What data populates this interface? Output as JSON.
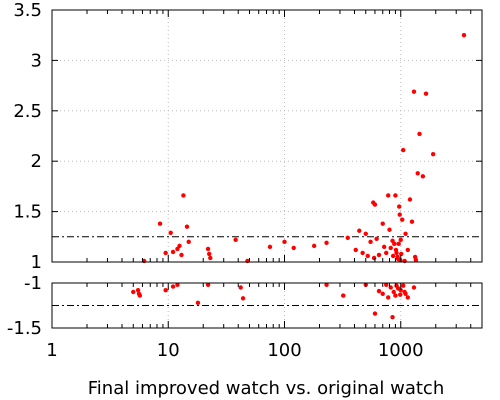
{
  "chart_data": {
    "type": "scatter",
    "xlabel": "Final improved watch vs. original watch",
    "ylabel": "",
    "x_scale": "log",
    "xlim": [
      1,
      5000
    ],
    "x_ticks": [
      "1",
      "10",
      "100",
      "1000"
    ],
    "grid": true,
    "point_color": "#ff0000",
    "panels": [
      {
        "name": "upper",
        "ylim": [
          1,
          3.5
        ],
        "y_ticks": [
          "1",
          "1.5",
          "2",
          "2.5",
          "3",
          "3.5"
        ],
        "reference_lines": [
          {
            "y": 1.25,
            "style": "dash-dot",
            "color": "#000000"
          },
          {
            "y": 1.0,
            "style": "dashed",
            "color": "#0000ff"
          }
        ],
        "points": [
          [
            6.2,
            1.01
          ],
          [
            8.5,
            1.38
          ],
          [
            9.5,
            1.09
          ],
          [
            10.5,
            1.29
          ],
          [
            11,
            1.1
          ],
          [
            12,
            1.13
          ],
          [
            12.5,
            1.16
          ],
          [
            13,
            1.07
          ],
          [
            13.5,
            1.66
          ],
          [
            14.5,
            1.35
          ],
          [
            15,
            1.2
          ],
          [
            22,
            1.13
          ],
          [
            22.5,
            1.08
          ],
          [
            23,
            1.04
          ],
          [
            38,
            1.22
          ],
          [
            48,
            1.01
          ],
          [
            75,
            1.15
          ],
          [
            100,
            1.2
          ],
          [
            120,
            1.14
          ],
          [
            180,
            1.16
          ],
          [
            230,
            1.19
          ],
          [
            350,
            1.24
          ],
          [
            410,
            1.12
          ],
          [
            440,
            1.31
          ],
          [
            470,
            1.09
          ],
          [
            500,
            1.28
          ],
          [
            520,
            1.06
          ],
          [
            550,
            1.2
          ],
          [
            580,
            1.59
          ],
          [
            590,
            1.04
          ],
          [
            600,
            1.57
          ],
          [
            620,
            1.23
          ],
          [
            650,
            1.07
          ],
          [
            700,
            1.38
          ],
          [
            720,
            1.15
          ],
          [
            750,
            1.09
          ],
          [
            780,
            1.66
          ],
          [
            800,
            1.32
          ],
          [
            820,
            1.14
          ],
          [
            850,
            1.21
          ],
          [
            860,
            1.06
          ],
          [
            880,
            1.18
          ],
          [
            900,
            1.66
          ],
          [
            910,
            1.12
          ],
          [
            920,
            1.09
          ],
          [
            940,
            1.05
          ],
          [
            950,
            1.03
          ],
          [
            960,
            1.18
          ],
          [
            970,
            1.55
          ],
          [
            980,
            1.47
          ],
          [
            990,
            1.02
          ],
          [
            1000,
            1.22
          ],
          [
            1010,
            1.08
          ],
          [
            1030,
            1.42
          ],
          [
            1050,
            2.11
          ],
          [
            1080,
            1.01
          ],
          [
            1100,
            1.28
          ],
          [
            1150,
            1.12
          ],
          [
            1200,
            1.62
          ],
          [
            1250,
            1.4
          ],
          [
            1300,
            2.69
          ],
          [
            1330,
            1.05
          ],
          [
            1350,
            1.02
          ],
          [
            1400,
            1.88
          ],
          [
            1450,
            2.27
          ],
          [
            1550,
            1.85
          ],
          [
            1650,
            2.67
          ],
          [
            1900,
            2.07
          ],
          [
            3500,
            3.25
          ]
        ]
      },
      {
        "name": "lower",
        "ylim": [
          -1.5,
          -1
        ],
        "y_ticks": [
          "-1",
          "-1.5"
        ],
        "reference_lines": [
          {
            "y": -1.0,
            "style": "dashed",
            "color": "#0000ff"
          },
          {
            "y": -1.25,
            "style": "dash-dot",
            "color": "#000000"
          }
        ],
        "points": [
          [
            5,
            -1.1
          ],
          [
            5.5,
            -1.08
          ],
          [
            5.6,
            -1.12
          ],
          [
            5.7,
            -1.14
          ],
          [
            9.5,
            -1.08
          ],
          [
            11,
            -1.04
          ],
          [
            12,
            -1.02
          ],
          [
            18,
            -1.22
          ],
          [
            22,
            -1.02
          ],
          [
            42,
            -1.05
          ],
          [
            44,
            -1.17
          ],
          [
            230,
            -1.02
          ],
          [
            320,
            -1.14
          ],
          [
            500,
            -1.02
          ],
          [
            600,
            -1.34
          ],
          [
            650,
            -1.09
          ],
          [
            700,
            -1.12
          ],
          [
            750,
            -1.02
          ],
          [
            780,
            -1.16
          ],
          [
            820,
            -1.05
          ],
          [
            850,
            -1.38
          ],
          [
            870,
            -1.1
          ],
          [
            900,
            -1.14
          ],
          [
            920,
            -1.03
          ],
          [
            950,
            -1.06
          ],
          [
            990,
            -1.13
          ],
          [
            1000,
            -1.08
          ],
          [
            1050,
            -1.03
          ],
          [
            1080,
            -1.1
          ],
          [
            1100,
            -1.12
          ],
          [
            1150,
            -1.16
          ],
          [
            1300,
            -1.05
          ]
        ]
      }
    ]
  }
}
